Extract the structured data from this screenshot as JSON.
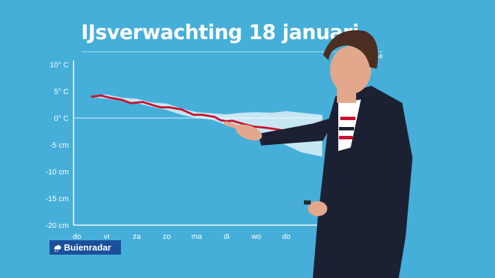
{
  "title": "IJsverwachting 18 januari",
  "corner_tag": "MI",
  "brand": {
    "name": "Buienradar",
    "color": "#1b4f9c"
  },
  "colors": {
    "background": "#45afd9",
    "forecast_line": "#c8102e",
    "spread": "#cde9f4",
    "axis": "#ffffff"
  },
  "chart_data": {
    "type": "line",
    "title": "IJsverwachting 18 januari",
    "categories": [
      "do",
      "vr",
      "za",
      "zo",
      "ma",
      "di",
      "wo",
      "do"
    ],
    "y_tick_labels": [
      "10° C",
      "5° C",
      "0° C",
      "-5 cm",
      "-10 cm",
      "-15 cm",
      "-20 cm"
    ],
    "ylim": [
      -20,
      10
    ],
    "grid": false,
    "zero_line": true,
    "series": [
      {
        "type": "line",
        "color": "#c8102e",
        "x": [
          0.5,
          0.8,
          1.1,
          1.5,
          1.8,
          2.2,
          2.6,
          2.8,
          3.1,
          3.5,
          3.9,
          4.2,
          4.6,
          4.8,
          5.0,
          5.2,
          5.5,
          5.9,
          6.3,
          6.8,
          7.0,
          7.2
        ],
        "y": [
          4,
          4.2,
          3.8,
          3.4,
          2.8,
          3.0,
          2.3,
          2.0,
          2.0,
          1.6,
          0.6,
          0.6,
          0.2,
          -0.4,
          -0.6,
          -0.5,
          -1.0,
          -1.6,
          -1.8,
          -2.2,
          -2.8,
          -3.3
        ]
      },
      {
        "type": "band",
        "color": "#cde9f4",
        "x": [
          0.5,
          1.0,
          1.5,
          2.0,
          2.5,
          3.0,
          3.5,
          4.0,
          4.5,
          5.0,
          5.5,
          6.0,
          6.5,
          7.0,
          7.5,
          8.2
        ],
        "upper": [
          4.2,
          4.4,
          3.8,
          3.6,
          2.9,
          2.7,
          1.8,
          1.1,
          0.9,
          0.7,
          1.0,
          1.1,
          1.0,
          1.3,
          1.0,
          0.6
        ],
        "lower": [
          3.9,
          3.6,
          3.2,
          2.8,
          2.1,
          1.5,
          0.6,
          0.0,
          -0.3,
          -1.3,
          -2.1,
          -3.2,
          -3.9,
          -5.1,
          -6.4,
          -7.2
        ]
      }
    ]
  }
}
